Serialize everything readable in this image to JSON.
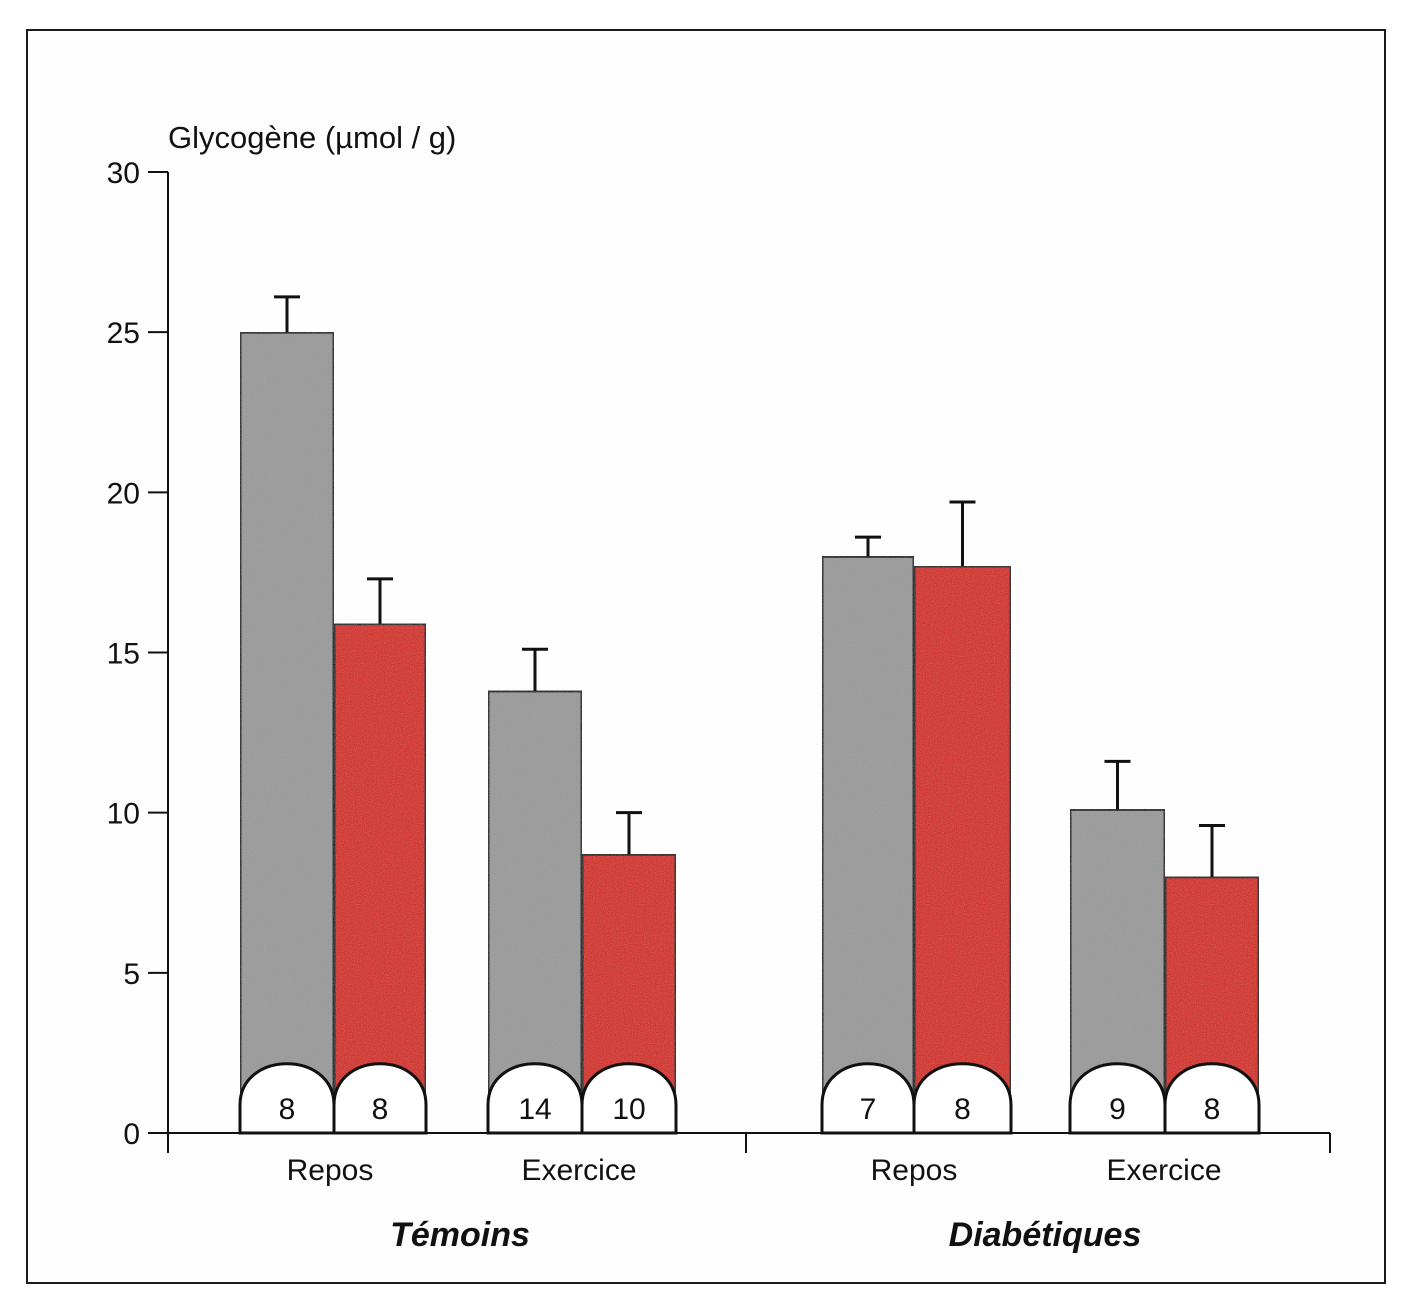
{
  "chart_data": {
    "type": "bar",
    "ylabel": "Glycogène (µmol / g)",
    "ylim": [
      0,
      30
    ],
    "yticks": [
      "0",
      "5",
      "10",
      "15",
      "20",
      "25",
      "30"
    ],
    "grid": false,
    "groups": [
      {
        "label": "Témoins",
        "categories": [
          {
            "label": "Repos",
            "bars": [
              {
                "value": 25.0,
                "error": 1.1,
                "n": "8",
                "color": "#9a9a9a"
              },
              {
                "value": 15.9,
                "error": 1.4,
                "n": "8",
                "color": "#d42316"
              }
            ]
          },
          {
            "label": "Exercice",
            "bars": [
              {
                "value": 13.8,
                "error": 1.3,
                "n": "14",
                "color": "#9a9a9a"
              },
              {
                "value": 8.7,
                "error": 1.3,
                "n": "10",
                "color": "#d42316"
              }
            ]
          }
        ]
      },
      {
        "label": "Diabétiques",
        "categories": [
          {
            "label": "Repos",
            "bars": [
              {
                "value": 18.0,
                "error": 0.6,
                "n": "7",
                "color": "#9a9a9a"
              },
              {
                "value": 17.7,
                "error": 2.0,
                "n": "8",
                "color": "#d42316"
              }
            ]
          },
          {
            "label": "Exercice",
            "bars": [
              {
                "value": 10.1,
                "error": 1.5,
                "n": "9",
                "color": "#9a9a9a"
              },
              {
                "value": 8.0,
                "error": 1.6,
                "n": "8",
                "color": "#d42316"
              }
            ]
          }
        ]
      }
    ]
  }
}
